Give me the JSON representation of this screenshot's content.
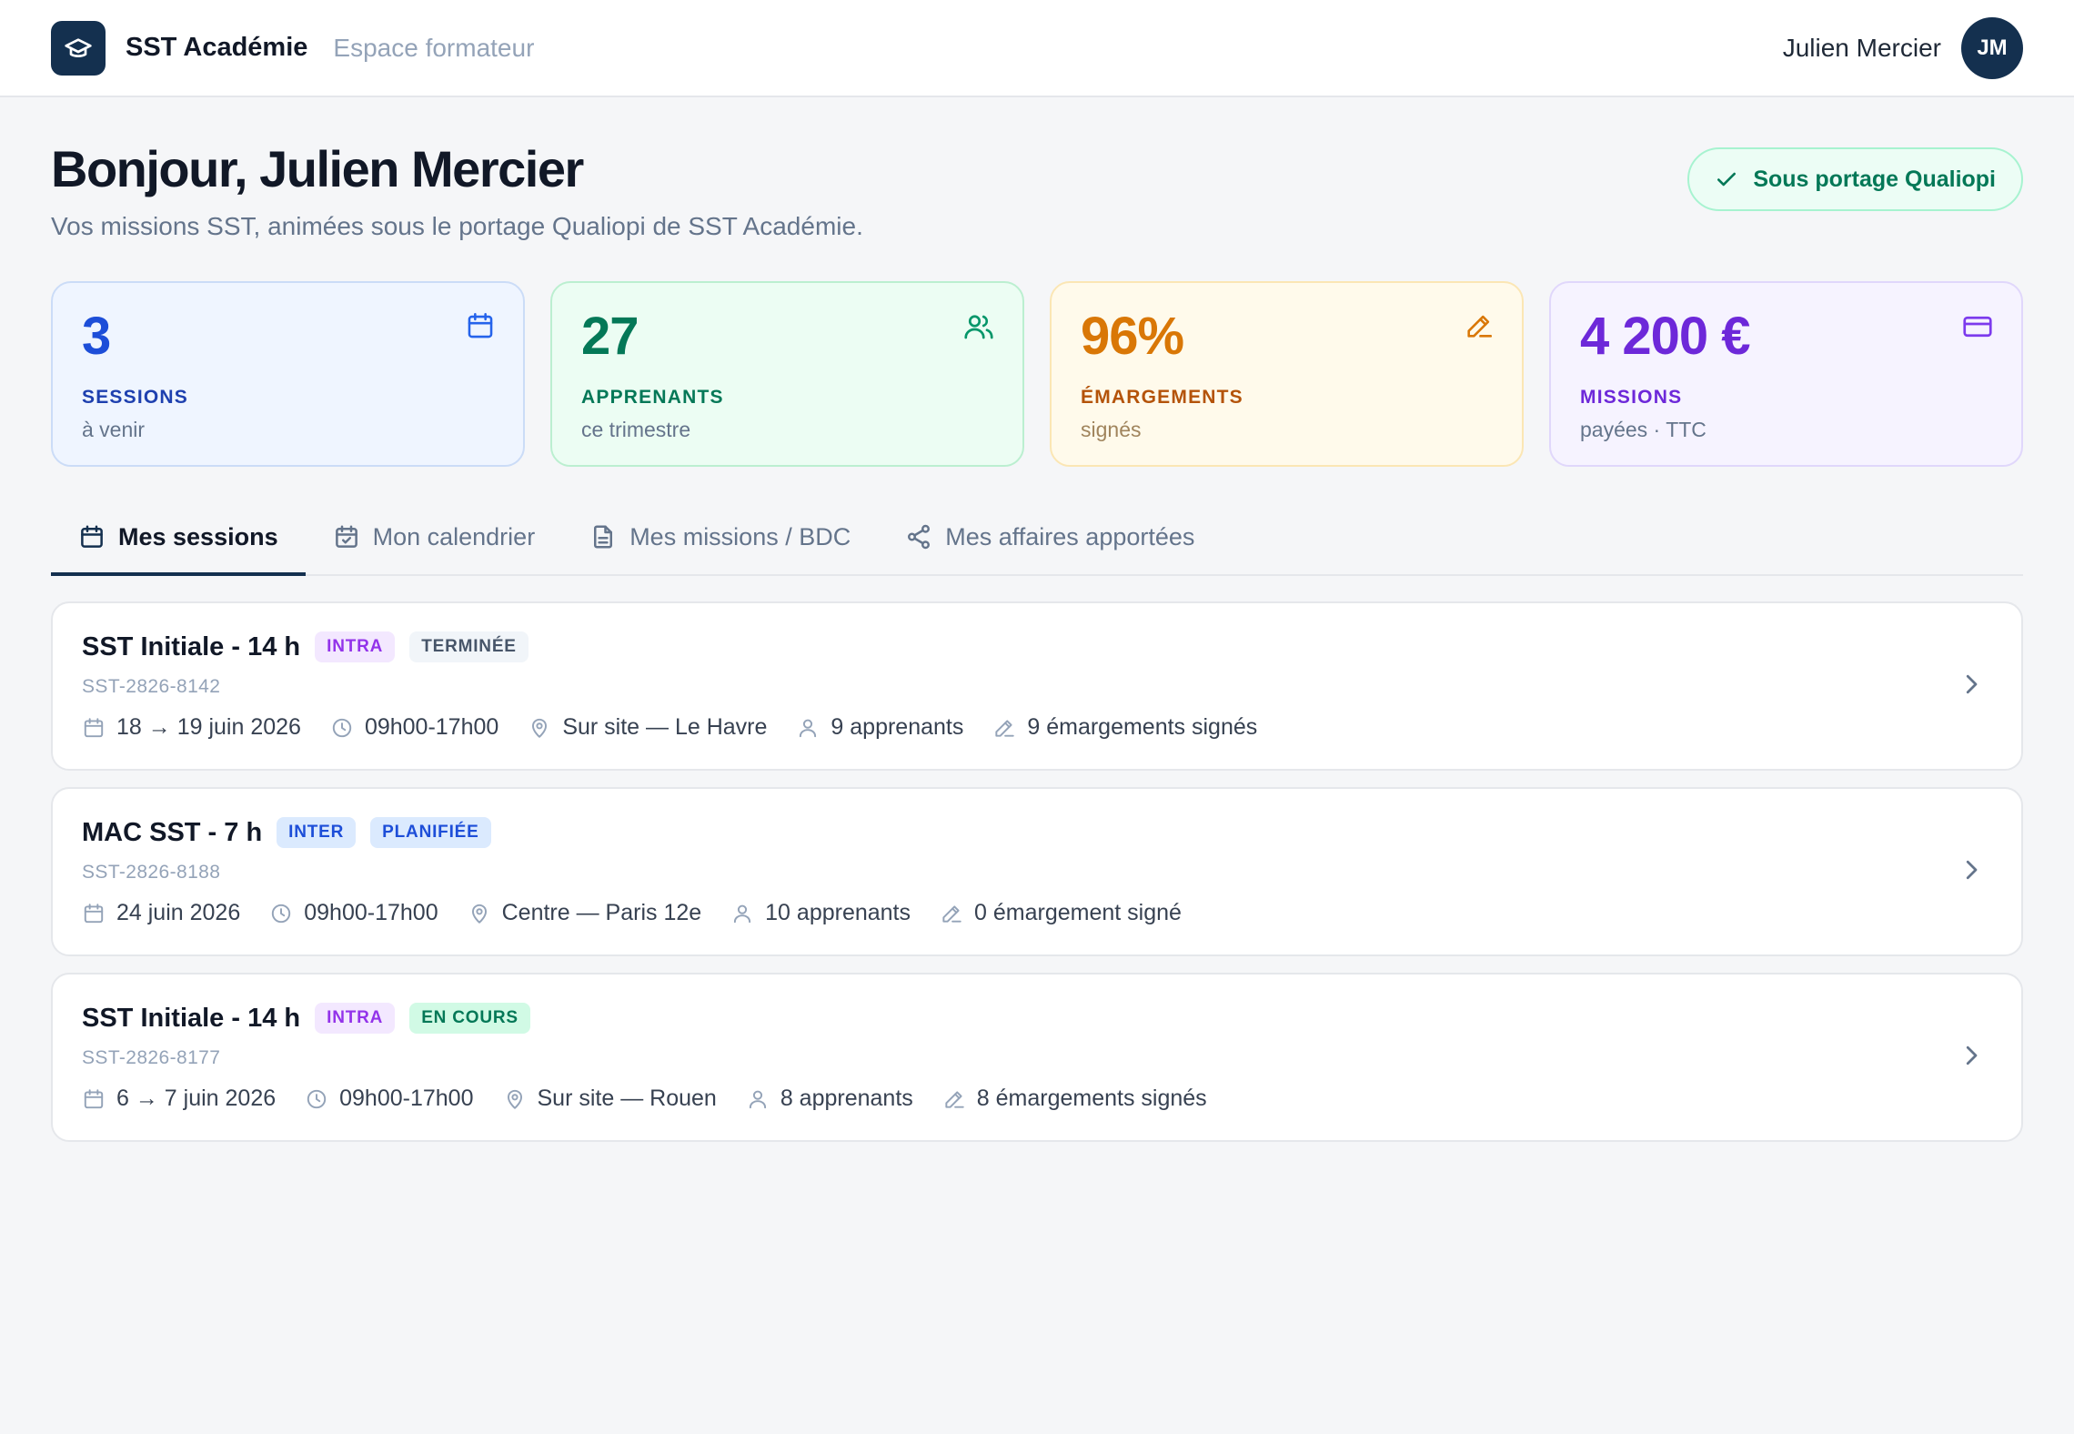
{
  "header": {
    "brand_name": "SST Académie",
    "brand_sub": "Espace formateur",
    "user_name": "Julien Mercier",
    "user_initials": "JM"
  },
  "hero": {
    "greeting": "Bonjour, Julien Mercier",
    "subtitle": "Vos missions SST, animées sous le portage Qualiopi de SST Académie.",
    "qualiopi_badge": "Sous portage Qualiopi"
  },
  "stats": [
    {
      "value": "3",
      "label": "SESSIONS",
      "sub": "à venir",
      "icon": "calendar-icon",
      "color": "#1d4ed8"
    },
    {
      "value": "27",
      "label": "APPRENANTS",
      "sub": "ce trimestre",
      "icon": "users-icon",
      "color": "#047857"
    },
    {
      "value": "96%",
      "label": "ÉMARGEMENTS",
      "sub": "signés",
      "icon": "pen-icon",
      "color": "#d97706"
    },
    {
      "value": "4 200 €",
      "label": "MISSIONS",
      "sub": "payées · TTC",
      "icon": "credit-card-icon",
      "color": "#6d28d9"
    }
  ],
  "tabs": [
    {
      "label": "Mes sessions",
      "icon": "calendar-icon",
      "active": true
    },
    {
      "label": "Mon calendrier",
      "icon": "calendar-check-icon",
      "active": false
    },
    {
      "label": "Mes missions / BDC",
      "icon": "document-icon",
      "active": false
    },
    {
      "label": "Mes affaires apportées",
      "icon": "share-icon",
      "active": false
    }
  ],
  "sessions": [
    {
      "title": "SST Initiale - 14 h",
      "type_badge": "INTRA",
      "status_badge": "TERMINÉE",
      "ref": "SST-2826-8142",
      "dates": "18 → 19 juin 2026",
      "hours": "09h00-17h00",
      "location": "Sur site — Le Havre",
      "learners": "9 apprenants",
      "signatures": "9 émargements signés"
    },
    {
      "title": "MAC SST - 7 h",
      "type_badge": "INTER",
      "status_badge": "PLANIFIÉE",
      "ref": "SST-2826-8188",
      "dates": "24 juin 2026",
      "hours": "09h00-17h00",
      "location": "Centre — Paris 12e",
      "learners": "10 apprenants",
      "signatures": "0 émargement signé"
    },
    {
      "title": "SST Initiale - 14 h",
      "type_badge": "INTRA",
      "status_badge": "EN COURS",
      "ref": "SST-2826-8177",
      "dates": "6 → 7 juin 2026",
      "hours": "09h00-17h00",
      "location": "Sur site — Rouen",
      "learners": "8 apprenants",
      "signatures": "8 émargements signés"
    }
  ]
}
